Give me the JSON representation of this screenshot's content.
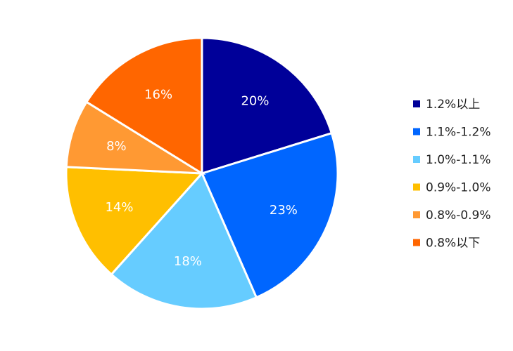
{
  "chart_data": {
    "type": "pie",
    "title": "",
    "legend_position": "right",
    "slices": [
      {
        "name": "1.2%以上",
        "value": 20,
        "label": "20%",
        "color": "#000099"
      },
      {
        "name": "1.1%-1.2%",
        "value": 23,
        "label": "23%",
        "color": "#0066FF"
      },
      {
        "name": "1.0%-1.1%",
        "value": 18,
        "label": "18%",
        "color": "#66CCFF"
      },
      {
        "name": "0.9%-1.0%",
        "value": 14,
        "label": "14%",
        "color": "#FFBF00"
      },
      {
        "name": "0.8%-0.9%",
        "value": 8,
        "label": "8%",
        "color": "#FF9933"
      },
      {
        "name": "0.8%以下",
        "value": 16,
        "label": "16%",
        "color": "#FF6600"
      }
    ]
  }
}
